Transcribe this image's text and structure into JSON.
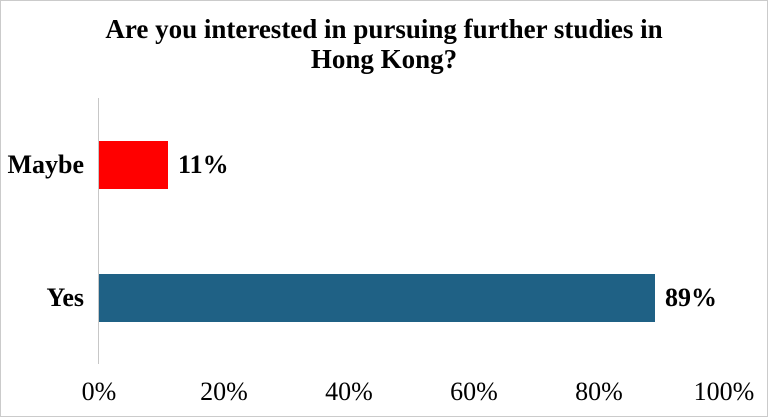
{
  "window": {
    "background": "#ffffff",
    "border_color": "#cbcbcb"
  },
  "chart_data": {
    "type": "bar",
    "orientation": "horizontal",
    "title": "Are you interested in pursuing further studies in Hong Kong?",
    "title_lines": [
      "Are you interested in pursuing further studies in",
      "Hong Kong?"
    ],
    "categories": [
      "Maybe",
      "Yes"
    ],
    "values": [
      11,
      89
    ],
    "value_labels": [
      "11%",
      "89%"
    ],
    "bar_colors": [
      "#ff0000",
      "#1f6185"
    ],
    "xlabel": "",
    "ylabel": "",
    "xlim": [
      0,
      100
    ],
    "x_ticks": [
      0,
      20,
      40,
      60,
      80,
      100
    ],
    "x_tick_labels": [
      "0%",
      "20%",
      "40%",
      "60%",
      "80%",
      "100%"
    ],
    "grid": "off",
    "legend": "none",
    "axis_line_color": "#c7c7c7",
    "text_color": "#000000"
  }
}
